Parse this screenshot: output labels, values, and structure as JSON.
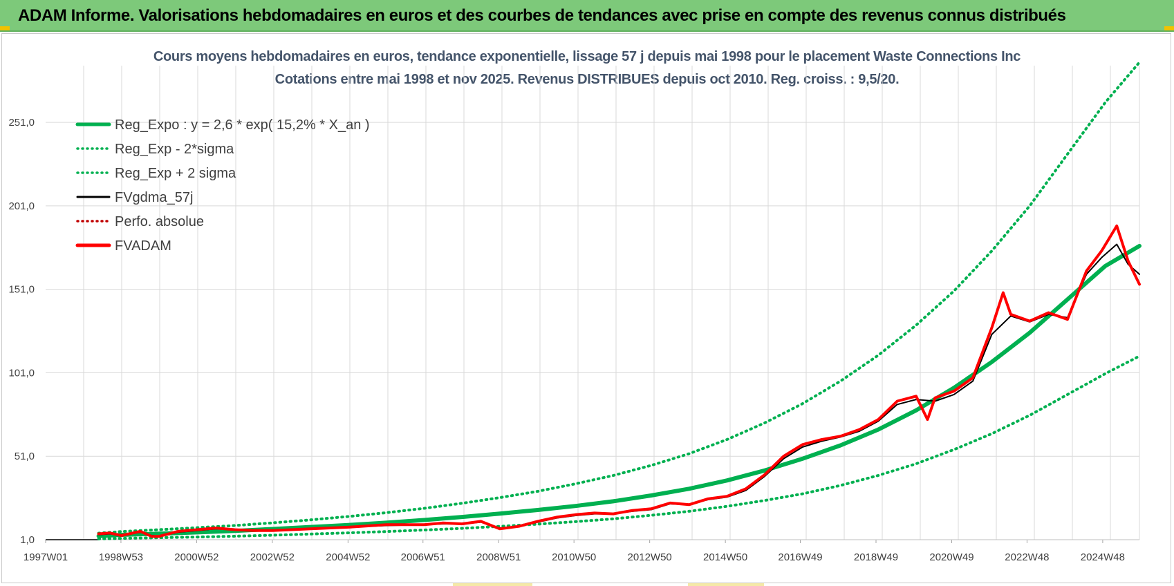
{
  "banner": {
    "title": "ADAM Informe. Valorisations hebdomadaires en euros et des courbes de tendances avec prise en compte des revenus connus distribués"
  },
  "colors": {
    "banner_bg": "#7dc97a",
    "reg_green": "#00b050",
    "fvgdma_black": "#000000",
    "fvadam_red": "#ff0000",
    "perfo_red": "#c00000",
    "grid": "#d9d9d9",
    "title_text": "#44546a"
  },
  "chart_data": {
    "type": "line",
    "title": "Cours moyens hebdomadaires en euros, tendance exponentielle, lissage 57 j depuis mai 1998 pour le placement Waste Connections Inc",
    "subtitle": "Cotations entre mai 1998 et nov 2025. Revenus DISTRIBUES depuis oct 2010. Reg. croiss. : 9,5/20.",
    "xlabel": "",
    "ylabel": "",
    "xlim": [
      1997.0,
      2025.9
    ],
    "ylim": [
      1.0,
      285.0
    ],
    "x_ticks": [
      1997.0,
      1998.99,
      2000.99,
      2002.99,
      2004.99,
      2006.97,
      2008.97,
      2010.96,
      2012.96,
      2014.96,
      2016.94,
      2018.94,
      2020.94,
      2022.93,
      2024.93
    ],
    "x_tick_labels": [
      "1997W01",
      "1998W53",
      "2000W52",
      "2002W52",
      "2004W52",
      "2006W51",
      "2008W51",
      "2010W50",
      "2012W50",
      "2014W50",
      "2016W49",
      "2018W49",
      "2020W49",
      "2022W48",
      "2024W48"
    ],
    "y_ticks": [
      1.0,
      51.0,
      101.0,
      151.0,
      201.0,
      251.0
    ],
    "y_tick_labels": [
      "1,0",
      "51,0",
      "101,0",
      "151,0",
      "201,0",
      "251,0"
    ],
    "legend_position": "top-left",
    "legend": [
      {
        "label": "Reg_Expo : y = 2,6 * exp( 15,2% *  X_an )",
        "style": "solid-thick",
        "color": "#00b050"
      },
      {
        "label": "Reg_Exp - 2*sigma",
        "style": "dotted",
        "color": "#00b050"
      },
      {
        "label": "Reg_Exp + 2 sigma",
        "style": "dotted",
        "color": "#00b050"
      },
      {
        "label": "FVgdma_57j",
        "style": "solid",
        "color": "#000000"
      },
      {
        "label": "Perfo. absolue",
        "style": "dotted",
        "color": "#c00000"
      },
      {
        "label": "FVADAM",
        "style": "solid-thick",
        "color": "#ff0000"
      }
    ],
    "series": [
      {
        "name": "Reg_Expo",
        "x": [
          1998.4,
          1999,
          2000,
          2001,
          2002,
          2003,
          2004,
          2005,
          2006,
          2007,
          2008,
          2009,
          2010,
          2011,
          2012,
          2013,
          2014,
          2015,
          2016,
          2017,
          2018,
          2019,
          2020,
          2021,
          2022,
          2023,
          2024,
          2025,
          2025.9
        ],
        "values": [
          3.2,
          3.9,
          4.6,
          5.4,
          6.3,
          7.4,
          8.6,
          9.8,
          11.2,
          12.8,
          14.6,
          16.6,
          18.8,
          21.2,
          24.0,
          27.5,
          31.5,
          36.5,
          42.5,
          49.5,
          57.5,
          67.0,
          78.5,
          92.0,
          107.5,
          125.0,
          145.0,
          165.0,
          177.0
        ]
      },
      {
        "name": "Reg_Exp - 2*sigma",
        "x": [
          1998.4,
          1999,
          2000,
          2001,
          2002,
          2003,
          2004,
          2005,
          2006,
          2007,
          2008,
          2009,
          2010,
          2011,
          2012,
          2013,
          2014,
          2015,
          2016,
          2017,
          2018,
          2019,
          2020,
          2021,
          2022,
          2023,
          2024,
          2025,
          2025.9
        ],
        "values": [
          1.5,
          1.8,
          2.2,
          2.6,
          3.1,
          3.7,
          4.4,
          5.1,
          5.9,
          6.8,
          7.8,
          9.0,
          10.3,
          11.8,
          13.5,
          15.6,
          18.0,
          21.0,
          24.5,
          28.5,
          33.5,
          39.5,
          46.5,
          55.0,
          64.5,
          75.5,
          88.0,
          100.5,
          111.0
        ]
      },
      {
        "name": "Reg_Exp + 2 sigma",
        "x": [
          1998.4,
          1999,
          2000,
          2001,
          2002,
          2003,
          2004,
          2005,
          2006,
          2007,
          2008,
          2009,
          2010,
          2011,
          2012,
          2013,
          2014,
          2015,
          2016,
          2017,
          2018,
          2019,
          2020,
          2021,
          2022,
          2023,
          2024,
          2025,
          2025.9
        ],
        "values": [
          4.9,
          5.9,
          7.0,
          8.2,
          9.5,
          11.1,
          12.9,
          14.9,
          17.2,
          19.8,
          22.8,
          26.2,
          30.0,
          34.5,
          39.5,
          45.5,
          52.5,
          61.0,
          71.0,
          82.5,
          96.0,
          111.5,
          129.5,
          150.0,
          174.0,
          201.0,
          232.0,
          263.0,
          287.0
        ]
      },
      {
        "name": "FVgdma_57j",
        "x": [
          1998.4,
          1998.7,
          1999.0,
          1999.5,
          1999.8,
          2000.0,
          2000.5,
          2001.0,
          2001.5,
          2002.0,
          2002.5,
          2003.0,
          2004.0,
          2005.0,
          2006.0,
          2007.0,
          2007.5,
          2008.0,
          2008.5,
          2009.0,
          2009.5,
          2010.0,
          2010.5,
          2011.0,
          2011.5,
          2012.0,
          2012.5,
          2013.0,
          2013.5,
          2014.0,
          2014.5,
          2015.0,
          2015.5,
          2016.0,
          2016.5,
          2017.0,
          2017.5,
          2018.0,
          2018.5,
          2019.0,
          2019.5,
          2020.0,
          2020.5,
          2021.0,
          2021.5,
          2022.0,
          2022.5,
          2023.0,
          2023.5,
          2024.0,
          2024.5,
          2024.9,
          2025.3,
          2025.6,
          2025.9
        ],
        "values": [
          4.0,
          4.5,
          3.5,
          5.5,
          3.5,
          3.0,
          5.5,
          6.5,
          7.5,
          7.0,
          6.5,
          6.5,
          7.5,
          8.5,
          9.5,
          10.0,
          10.5,
          10.5,
          11.5,
          8.0,
          9.0,
          11.5,
          14.0,
          15.5,
          16.5,
          16.5,
          18.0,
          19.0,
          22.5,
          22.0,
          25.0,
          26.5,
          30.5,
          39.0,
          49.5,
          56.5,
          60.0,
          62.5,
          66.0,
          72.0,
          82.0,
          85.0,
          84.0,
          88.0,
          96.0,
          124.0,
          135.0,
          131.5,
          136.0,
          134.0,
          160.0,
          170.0,
          178.0,
          166.0,
          160.0
        ]
      },
      {
        "name": "FVADAM",
        "x": [
          1998.4,
          1998.7,
          1999.0,
          1999.5,
          1999.8,
          2000.0,
          2000.5,
          2001.0,
          2001.5,
          2002.0,
          2002.5,
          2003.0,
          2004.0,
          2005.0,
          2006.0,
          2007.0,
          2007.5,
          2008.0,
          2008.5,
          2009.0,
          2009.5,
          2010.0,
          2010.5,
          2011.0,
          2011.5,
          2012.0,
          2012.5,
          2013.0,
          2013.5,
          2014.0,
          2014.5,
          2015.0,
          2015.5,
          2016.0,
          2016.5,
          2017.0,
          2017.5,
          2018.0,
          2018.5,
          2019.0,
          2019.5,
          2020.0,
          2020.3,
          2020.5,
          2021.0,
          2021.5,
          2022.0,
          2022.3,
          2022.5,
          2023.0,
          2023.5,
          2024.0,
          2024.5,
          2024.9,
          2025.3,
          2025.6,
          2025.9
        ],
        "values": [
          4.5,
          5.0,
          3.5,
          6.0,
          3.0,
          3.0,
          6.0,
          7.0,
          8.0,
          7.0,
          6.5,
          6.5,
          7.5,
          8.5,
          10.0,
          10.0,
          11.0,
          10.5,
          12.0,
          7.5,
          9.0,
          12.0,
          14.5,
          16.0,
          17.0,
          16.5,
          18.5,
          19.5,
          23.0,
          22.0,
          25.5,
          27.0,
          31.5,
          40.0,
          51.0,
          58.0,
          61.0,
          63.0,
          67.0,
          73.0,
          84.0,
          87.0,
          73.0,
          86.0,
          90.0,
          98.0,
          128.0,
          149.0,
          136.0,
          132.0,
          137.0,
          133.0,
          162.0,
          174.0,
          189.0,
          168.0,
          154.0
        ]
      }
    ]
  }
}
